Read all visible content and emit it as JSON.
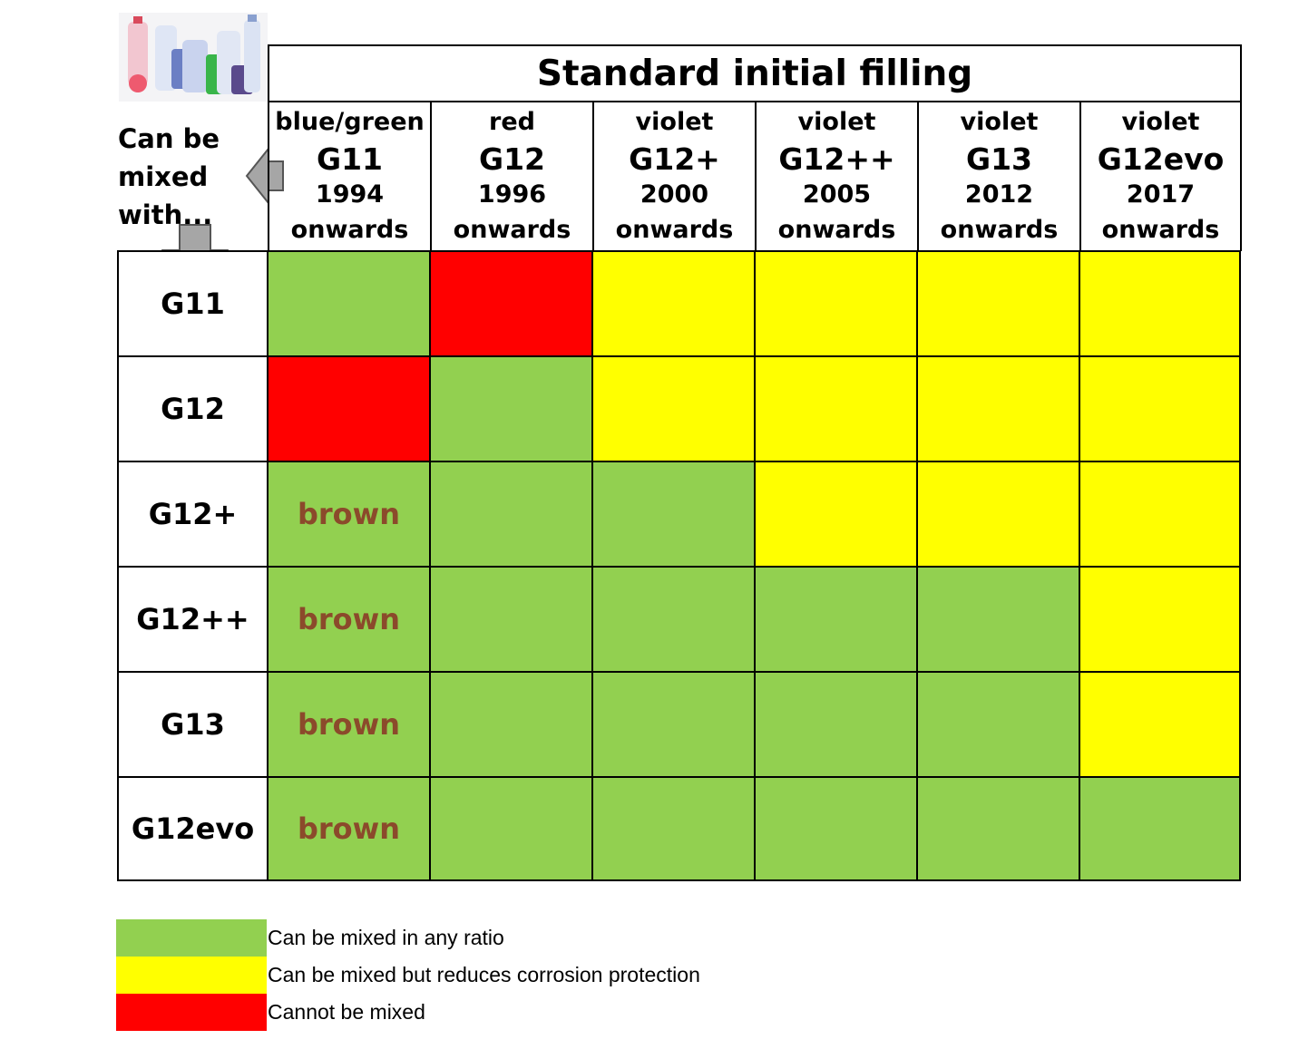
{
  "title": "Standard initial filling",
  "mix_label": "Can be\nmixed\nwith...",
  "colors": {
    "green": "#92d050",
    "yellow": "#ffff00",
    "red": "#ff0000",
    "brown_text": "#8b4a2b"
  },
  "chart_data": {
    "type": "table",
    "columns": [
      {
        "color": "blue/green",
        "code": "G11",
        "year": "1994",
        "suffix": "onwards"
      },
      {
        "color": "red",
        "code": "G12",
        "year": "1996",
        "suffix": "onwards"
      },
      {
        "color": "violet",
        "code": "G12+",
        "year": "2000",
        "suffix": "onwards"
      },
      {
        "color": "violet",
        "code": "G12++",
        "year": "2005",
        "suffix": "onwards"
      },
      {
        "color": "violet",
        "code": "G13",
        "year": "2012",
        "suffix": "onwards"
      },
      {
        "color": "violet",
        "code": "G12evo",
        "year": "2017",
        "suffix": "onwards"
      }
    ],
    "rows": [
      {
        "label": "G11",
        "cells": [
          {
            "c": "green"
          },
          {
            "c": "red"
          },
          {
            "c": "yellow"
          },
          {
            "c": "yellow"
          },
          {
            "c": "yellow"
          },
          {
            "c": "yellow"
          }
        ]
      },
      {
        "label": "G12",
        "cells": [
          {
            "c": "red"
          },
          {
            "c": "green"
          },
          {
            "c": "yellow"
          },
          {
            "c": "yellow"
          },
          {
            "c": "yellow"
          },
          {
            "c": "yellow"
          }
        ]
      },
      {
        "label": "G12+",
        "cells": [
          {
            "c": "green",
            "t": "brown"
          },
          {
            "c": "green"
          },
          {
            "c": "green"
          },
          {
            "c": "yellow"
          },
          {
            "c": "yellow"
          },
          {
            "c": "yellow"
          }
        ]
      },
      {
        "label": "G12++",
        "cells": [
          {
            "c": "green",
            "t": "brown"
          },
          {
            "c": "green"
          },
          {
            "c": "green"
          },
          {
            "c": "green"
          },
          {
            "c": "green"
          },
          {
            "c": "yellow"
          }
        ]
      },
      {
        "label": "G13",
        "cells": [
          {
            "c": "green",
            "t": "brown"
          },
          {
            "c": "green"
          },
          {
            "c": "green"
          },
          {
            "c": "green"
          },
          {
            "c": "green"
          },
          {
            "c": "yellow"
          }
        ]
      },
      {
        "label": "G12evo",
        "cells": [
          {
            "c": "green",
            "t": "brown"
          },
          {
            "c": "green"
          },
          {
            "c": "green"
          },
          {
            "c": "green"
          },
          {
            "c": "green"
          },
          {
            "c": "green"
          }
        ]
      }
    ],
    "legend": [
      {
        "color": "green",
        "text": "Can be mixed in any ratio"
      },
      {
        "color": "yellow",
        "text": "Can be mixed but reduces corrosion protection"
      },
      {
        "color": "red",
        "text": "Cannot be mixed"
      }
    ]
  }
}
